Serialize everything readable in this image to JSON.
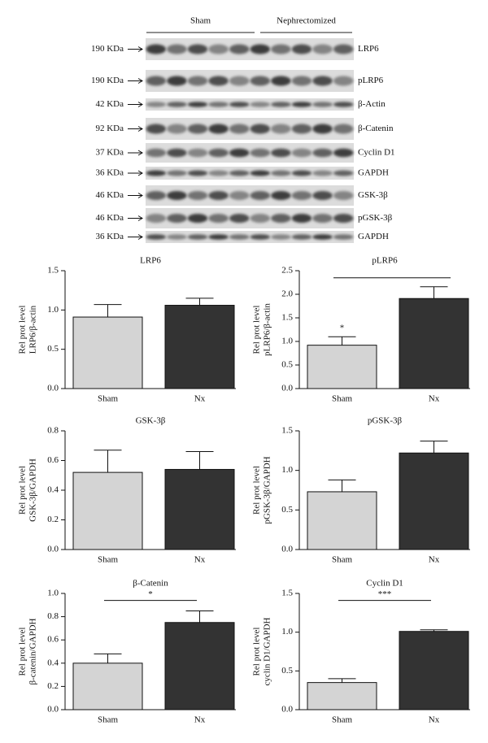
{
  "blot": {
    "groups": [
      "Sham",
      "Nephrectomized"
    ],
    "rows": [
      {
        "size": "190 KDa",
        "protein": "LRP6"
      },
      {
        "size": "190 KDa",
        "protein": "pLRP6"
      },
      {
        "size": "42 KDa",
        "protein": "β-Actin"
      },
      {
        "size": "92 KDa",
        "protein": "β-Catenin"
      },
      {
        "size": "37 KDa",
        "protein": "Cyclin D1"
      },
      {
        "size": "36 KDa",
        "protein": "GAPDH"
      },
      {
        "size": "46 KDa",
        "protein": "GSK-3β"
      },
      {
        "size": "46 KDa",
        "protein": "pGSK-3β"
      },
      {
        "size": "36 KDa",
        "protein": "GAPDH"
      }
    ]
  },
  "chart_data": [
    {
      "type": "bar",
      "title": "LRP6",
      "ylabel": [
        "Rel prot level",
        "LRP6/β-actin"
      ],
      "categories": [
        "Sham",
        "Nx"
      ],
      "values": [
        0.91,
        1.06
      ],
      "errors": [
        0.16,
        0.09
      ],
      "colors": [
        "#d4d4d4",
        "#333333"
      ],
      "ylim": [
        0,
        1.5
      ],
      "yticks": [
        {
          "value": 0,
          "label": "0.0"
        },
        {
          "value": 0.5,
          "label": "0.5"
        },
        {
          "value": 1,
          "label": "1.0"
        },
        {
          "value": 1.5,
          "label": "1.5"
        }
      ]
    },
    {
      "type": "bar",
      "title": "pLRP6",
      "ylabel": [
        "Rel prot level",
        "pLRP6/β-actin"
      ],
      "categories": [
        "Sham",
        "Nx"
      ],
      "values": [
        0.92,
        1.91
      ],
      "errors": [
        0.18,
        0.25
      ],
      "colors": [
        "#d4d4d4",
        "#333333"
      ],
      "ylim": [
        0,
        2.5
      ],
      "yticks": [
        {
          "value": 0,
          "label": "0.0"
        },
        {
          "value": 0.5,
          "label": "0.5"
        },
        {
          "value": 1,
          "label": "1.0"
        },
        {
          "value": 1.5,
          "label": "1.5"
        },
        {
          "value": 2,
          "label": "2.0"
        },
        {
          "value": 2.5,
          "label": "2.5"
        }
      ],
      "significance": "*"
    },
    {
      "type": "bar",
      "title": "GSK-3β",
      "ylabel": [
        "Rel prot level",
        "GSK-3β/GAPDH"
      ],
      "categories": [
        "Sham",
        "Nx"
      ],
      "values": [
        0.52,
        0.54
      ],
      "errors": [
        0.15,
        0.12
      ],
      "colors": [
        "#d4d4d4",
        "#333333"
      ],
      "ylim": [
        0,
        0.8
      ],
      "yticks": [
        {
          "value": 0,
          "label": "0.0"
        },
        0.2,
        0.4,
        0.6,
        0.8
      ]
    },
    {
      "type": "bar",
      "title": "pGSK-3β",
      "ylabel": [
        "Rel prot level",
        "pGSK-3β/GAPDH"
      ],
      "categories": [
        "Sham",
        "Nx"
      ],
      "values": [
        0.73,
        1.22
      ],
      "errors": [
        0.15,
        0.15
      ],
      "colors": [
        "#d4d4d4",
        "#333333"
      ],
      "ylim": [
        0,
        1.5
      ],
      "yticks": [
        {
          "value": 0,
          "label": "0.0"
        },
        {
          "value": 0.5,
          "label": "0.5"
        },
        {
          "value": 1,
          "label": "1.0"
        },
        {
          "value": 1.5,
          "label": "1.5"
        }
      ]
    },
    {
      "type": "bar",
      "title": "β-Catenin",
      "ylabel": [
        "Rel prot level",
        "β-catenin/GAPDH"
      ],
      "categories": [
        "Sham",
        "Nx"
      ],
      "values": [
        0.4,
        0.75
      ],
      "errors": [
        0.08,
        0.1
      ],
      "colors": [
        "#d4d4d4",
        "#333333"
      ],
      "ylim": [
        0,
        1
      ],
      "yticks": [
        {
          "value": 0,
          "label": "0.0"
        },
        0.2,
        0.4,
        0.6,
        0.8,
        {
          "value": 1,
          "label": "1.0"
        }
      ],
      "significance": "*"
    },
    {
      "type": "bar",
      "title": "Cyclin D1",
      "ylabel": [
        "Rel prot level",
        "cyclin D1/GAPDH"
      ],
      "categories": [
        "Sham",
        "Nx"
      ],
      "values": [
        0.35,
        1.01
      ],
      "errors": [
        0.05,
        0.02
      ],
      "colors": [
        "#d4d4d4",
        "#333333"
      ],
      "ylim": [
        0,
        1.5
      ],
      "yticks": [
        {
          "value": 0,
          "label": "0.0"
        },
        {
          "value": 0.5,
          "label": "0.5"
        },
        {
          "value": 1,
          "label": "1.0"
        },
        {
          "value": 1.5,
          "label": "1.5"
        }
      ],
      "significance": "***"
    }
  ]
}
